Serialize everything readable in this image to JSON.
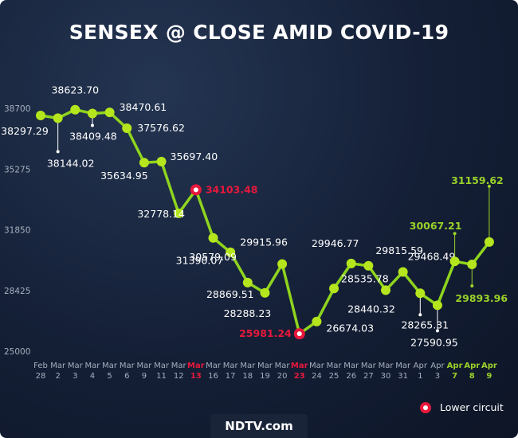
{
  "chart_data": {
    "type": "line",
    "title": "SENSEX @ CLOSE AMID COVID-19",
    "ylim": [
      25000,
      38700
    ],
    "yticks": [
      "38700",
      "35275",
      "31850",
      "28425",
      "25000"
    ],
    "categories": [
      {
        "m": "Feb",
        "d": "28"
      },
      {
        "m": "Mar",
        "d": "2"
      },
      {
        "m": "Mar",
        "d": "3"
      },
      {
        "m": "Mar",
        "d": "4"
      },
      {
        "m": "Mar",
        "d": "5"
      },
      {
        "m": "Mar",
        "d": "6"
      },
      {
        "m": "Mar",
        "d": "9"
      },
      {
        "m": "Mar",
        "d": "11"
      },
      {
        "m": "Mar",
        "d": "12"
      },
      {
        "m": "Mar",
        "d": "13"
      },
      {
        "m": "Mar",
        "d": "16"
      },
      {
        "m": "Mar",
        "d": "17"
      },
      {
        "m": "Mar",
        "d": "18"
      },
      {
        "m": "Mar",
        "d": "19"
      },
      {
        "m": "Mar",
        "d": "20"
      },
      {
        "m": "Mar",
        "d": "23"
      },
      {
        "m": "Mar",
        "d": "24"
      },
      {
        "m": "Mar",
        "d": "25"
      },
      {
        "m": "Mar",
        "d": "26"
      },
      {
        "m": "Mar",
        "d": "27"
      },
      {
        "m": "Mar",
        "d": "30"
      },
      {
        "m": "Mar",
        "d": "31"
      },
      {
        "m": "Apr",
        "d": "1"
      },
      {
        "m": "Apr",
        "d": "3"
      },
      {
        "m": "Apr",
        "d": "7"
      },
      {
        "m": "Apr",
        "d": "8"
      },
      {
        "m": "Apr",
        "d": "9"
      }
    ],
    "values": [
      38297.29,
      38144.02,
      38623.7,
      38409.48,
      38470.61,
      37576.62,
      35634.95,
      35697.4,
      32778.14,
      34103.48,
      31390.07,
      30579.09,
      28869.51,
      28288.23,
      29915.96,
      25981.24,
      26674.03,
      28535.78,
      29946.77,
      29815.59,
      28440.32,
      29468.49,
      28265.31,
      27590.95,
      30067.21,
      29893.96,
      31159.62
    ],
    "labels": [
      "38297.29",
      "38144.02",
      "38623.70",
      "38409.48",
      "38470.61",
      "37576.62",
      "35634.95",
      "35697.40",
      "32778.14",
      "34103.48",
      "31390.07",
      "30579.09",
      "28869.51",
      "28288.23",
      "29915.96",
      "25981.24",
      "26674.03",
      "28535.78",
      "29946.77",
      "29815.59",
      "28440.32",
      "29468.49",
      "28265.31",
      "27590.95",
      "30067.21",
      "29893.96",
      "31159.62"
    ],
    "lower_circuit": [
      9,
      15
    ],
    "highlight_green": [
      24,
      25,
      26
    ],
    "legend": {
      "label": "Lower circuit",
      "placement": "bottom-right"
    },
    "colors": {
      "line": "#8fd41e",
      "marker": "#b5e61d",
      "lower_circuit": "#e8183c",
      "green_text": "#9ad12a",
      "text": "#ffffff",
      "axis_text": "#a6afbd"
    }
  },
  "brand": {
    "logo": "NDTV.com"
  }
}
